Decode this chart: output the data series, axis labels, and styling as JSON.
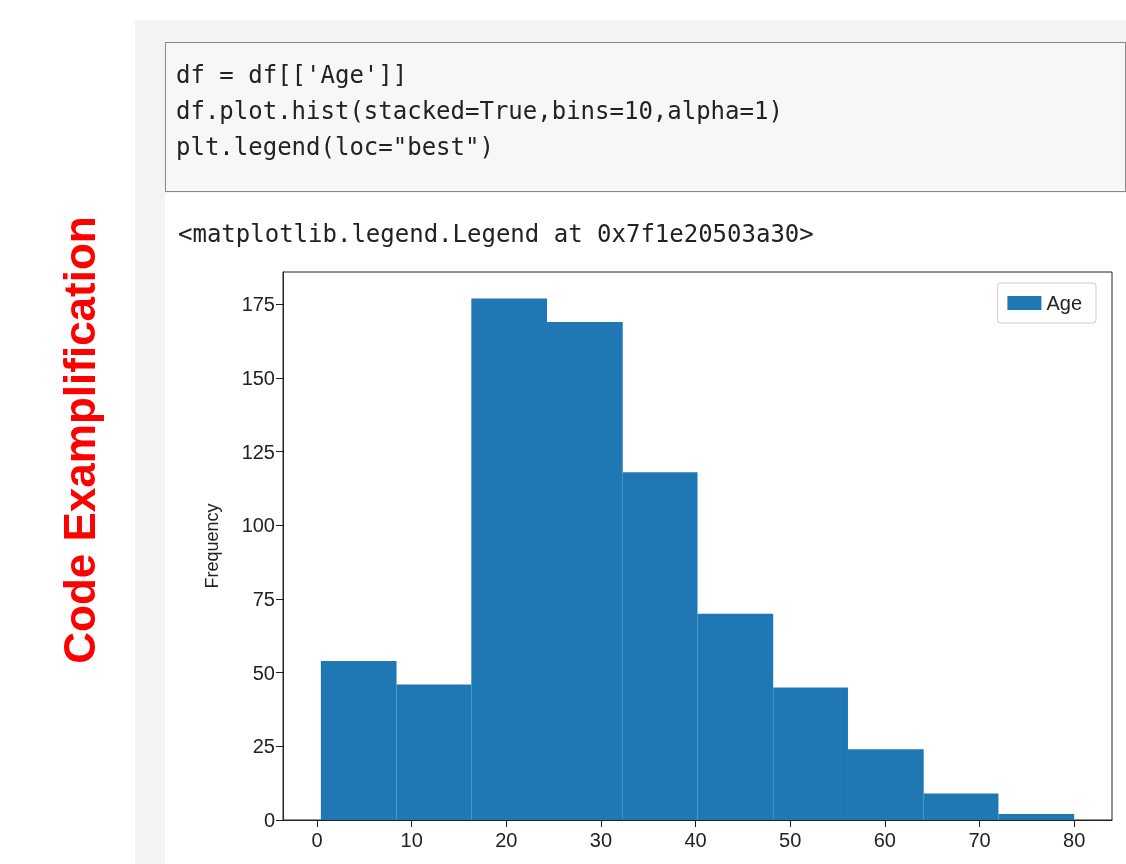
{
  "chart_data": {
    "type": "histogram",
    "title": "Code Examplification",
    "annotations": [
      "df = df[['Age']]",
      "df.plot.hist(stacked=True,bins=10,alpha=1)",
      "plt.legend(loc=\"best\")",
      "<matplotlib.legend.Legend at 0x7f1e20503a30>"
    ],
    "ylabel": "Frequency",
    "bins": [
      0.4,
      8.4,
      16.3,
      24.3,
      32.3,
      40.2,
      48.2,
      56.1,
      64.1,
      72.0,
      80.0
    ],
    "series": [
      {
        "name": "Age",
        "color": "#1f77b4",
        "values": [
          54,
          46,
          177,
          169,
          118,
          70,
          45,
          24,
          9,
          2
        ]
      }
    ],
    "xlim": [
      -3.6,
      84
    ],
    "xticks": [
      0,
      10,
      20,
      30,
      40,
      50,
      60,
      70,
      80
    ],
    "ylim": [
      0,
      186
    ],
    "yticks": [
      0,
      25,
      50,
      75,
      100,
      125,
      150,
      175
    ],
    "legend": "top right",
    "grid": false
  }
}
